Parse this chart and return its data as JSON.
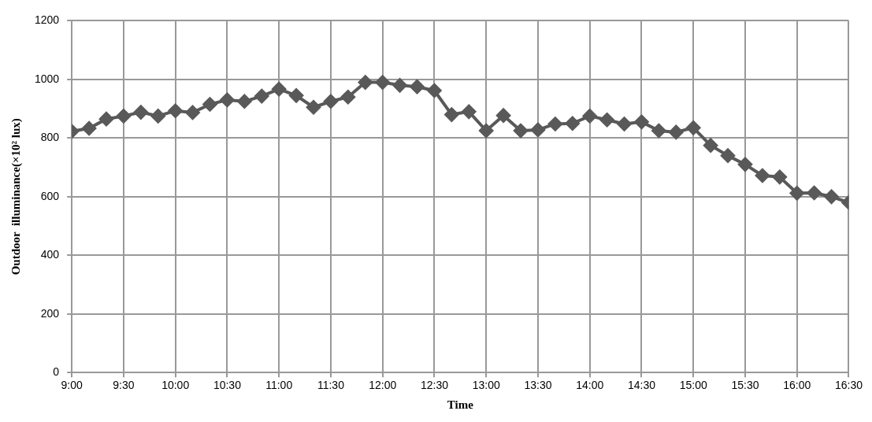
{
  "chart_data": {
    "type": "line",
    "xlabel": "Time",
    "ylabel": "Outdoor  illuminance(×10² lux)",
    "x": [
      9,
      9.1667,
      9.3333,
      9.5,
      9.6667,
      9.8333,
      10,
      10.1667,
      10.3333,
      10.5,
      10.6667,
      10.8333,
      11,
      11.1667,
      11.3333,
      11.5,
      11.6667,
      11.8333,
      12,
      12.1667,
      12.3333,
      12.5,
      12.6667,
      12.8333,
      13,
      13.1667,
      13.3333,
      13.5,
      13.6667,
      13.8333,
      14,
      14.1667,
      14.3333,
      14.5,
      14.6667,
      14.8333,
      15,
      15.1667,
      15.3333,
      15.5,
      15.6667,
      15.8333,
      16,
      16.1667,
      16.3333,
      16.5
    ],
    "series": [
      {
        "color": "#595959",
        "values": [
          823,
          833,
          865,
          875,
          888,
          875,
          893,
          887,
          915,
          930,
          925,
          943,
          967,
          945,
          905,
          925,
          940,
          990,
          990,
          980,
          975,
          962,
          880,
          890,
          825,
          877,
          825,
          828,
          848,
          850,
          875,
          862,
          848,
          855,
          825,
          820,
          835,
          775,
          740,
          710,
          672,
          667,
          612,
          613,
          600,
          580
        ]
      }
    ],
    "xlim": [
      9,
      16.5
    ],
    "xticks": [
      {
        "value": 9,
        "label": "9:00"
      },
      {
        "value": 9.5,
        "label": "9:30"
      },
      {
        "value": 10,
        "label": "10:00"
      },
      {
        "value": 10.5,
        "label": "10:30"
      },
      {
        "value": 11,
        "label": "11:00"
      },
      {
        "value": 11.5,
        "label": "11:30"
      },
      {
        "value": 12,
        "label": "12:00"
      },
      {
        "value": 12.5,
        "label": "12:30"
      },
      {
        "value": 13,
        "label": "13:00"
      },
      {
        "value": 13.5,
        "label": "13:30"
      },
      {
        "value": 14,
        "label": "14:00"
      },
      {
        "value": 14.5,
        "label": "14:30"
      },
      {
        "value": 15,
        "label": "15:00"
      },
      {
        "value": 15.5,
        "label": "15:30"
      },
      {
        "value": 16,
        "label": "16:00"
      },
      {
        "value": 16.5,
        "label": "16:30"
      }
    ],
    "ylim": [
      0,
      1200
    ],
    "yticks": [
      0,
      200,
      400,
      600,
      800,
      1000,
      1200
    ],
    "grid": true,
    "legend": false,
    "marker": "diamond",
    "line_style": "solid"
  }
}
